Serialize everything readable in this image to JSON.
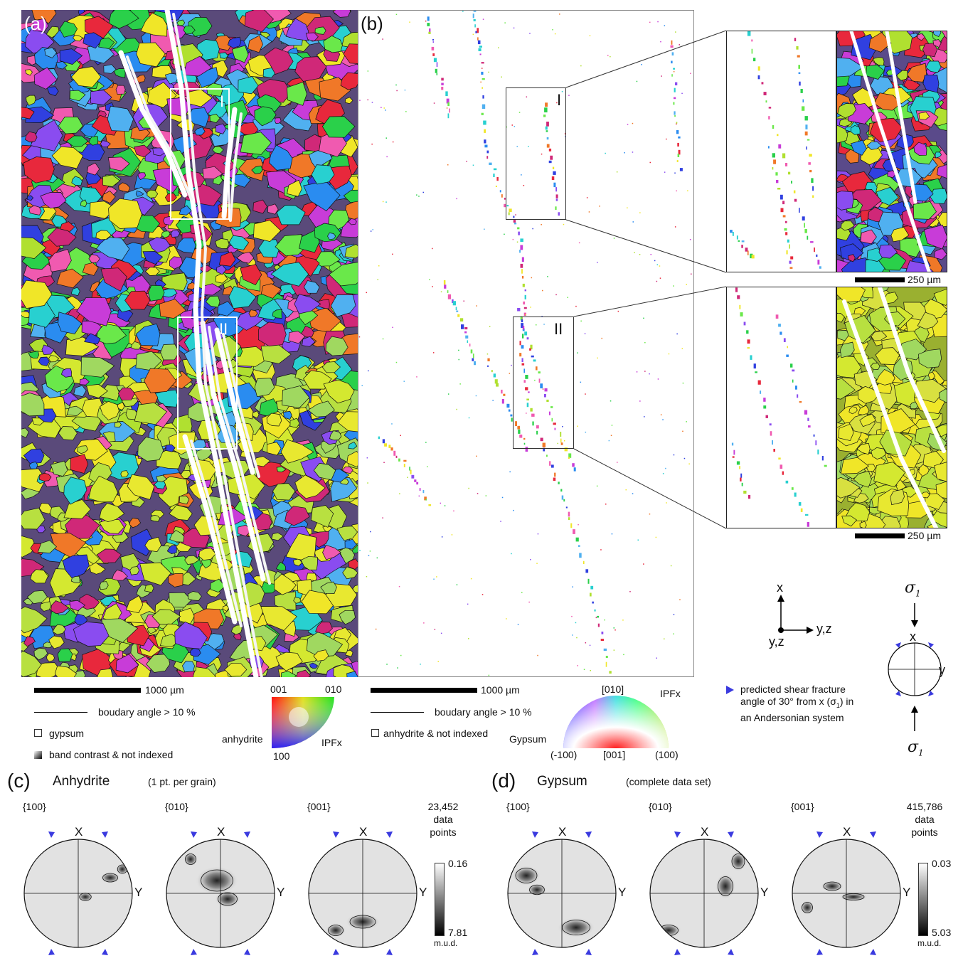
{
  "panels": {
    "a": {
      "label": "(a)",
      "region_labels": [
        "I",
        "II"
      ]
    },
    "b": {
      "label": "(b)",
      "region_labels": [
        "I",
        "II"
      ]
    },
    "zoom_scale_label_1": "250 µm",
    "zoom_scale_label_2": "250 µm"
  },
  "legend_a": {
    "scale_label": "1000 µm",
    "boundary_label": "boudary angle > 10 %",
    "gypsum_label": "gypsum",
    "band_contrast_label": "band contrast & not indexed",
    "phase_label": "anhydrite",
    "ipf_label": "IPFx",
    "corner_001": "001",
    "corner_010": "010",
    "corner_100": "100"
  },
  "legend_b": {
    "scale_label": "1000 µm",
    "boundary_label": "boudary angle > 10 %",
    "not_indexed_label": "anhydrite & not indexed",
    "phase_label": "Gypsum",
    "ipf_label": "IPFx",
    "top_label": "[010]",
    "bottom_left": "(-100)",
    "bottom_mid": "[001]",
    "bottom_right": "(100)"
  },
  "coordinate_system": {
    "x_label": "x",
    "yz_label": "y,z",
    "yz_label_2": "y,z",
    "sigma_top": "σ",
    "sigma_sub": "1",
    "sigma_bottom": "σ",
    "sigma_bottom_sub": "1",
    "circle_x": "x",
    "circle_y": "y",
    "fracture_note_1": "predicted shear fracture",
    "fracture_note_2": "angle of 30° from x (σ",
    "fracture_note_2_sub": "1",
    "fracture_note_2_end": ") in",
    "fracture_note_3": "an Andersonian system"
  },
  "pole_figures": {
    "c": {
      "label": "(c)",
      "title": "Anhydrite",
      "subtitle": "(1 pt. per grain)",
      "planes": [
        "{100}",
        "{010}",
        "{001}"
      ],
      "data_points": "23,452",
      "data_label_1": "data",
      "data_label_2": "points",
      "max_value": "0.16",
      "min_value": "7.81",
      "unit": "m.u.d."
    },
    "d": {
      "label": "(d)",
      "title": "Gypsum",
      "subtitle": "(complete data set)",
      "planes": [
        "{100}",
        "{010}",
        "{001}"
      ],
      "data_points": "415,786",
      "data_label_1": "data",
      "data_label_2": "points",
      "max_value": "0.03",
      "min_value": "5.03",
      "unit": "m.u.d."
    },
    "x_axis": "X",
    "y_axis": "Y"
  },
  "colors": {
    "triangle_marker": "#3a3adf",
    "background": "#ffffff"
  }
}
